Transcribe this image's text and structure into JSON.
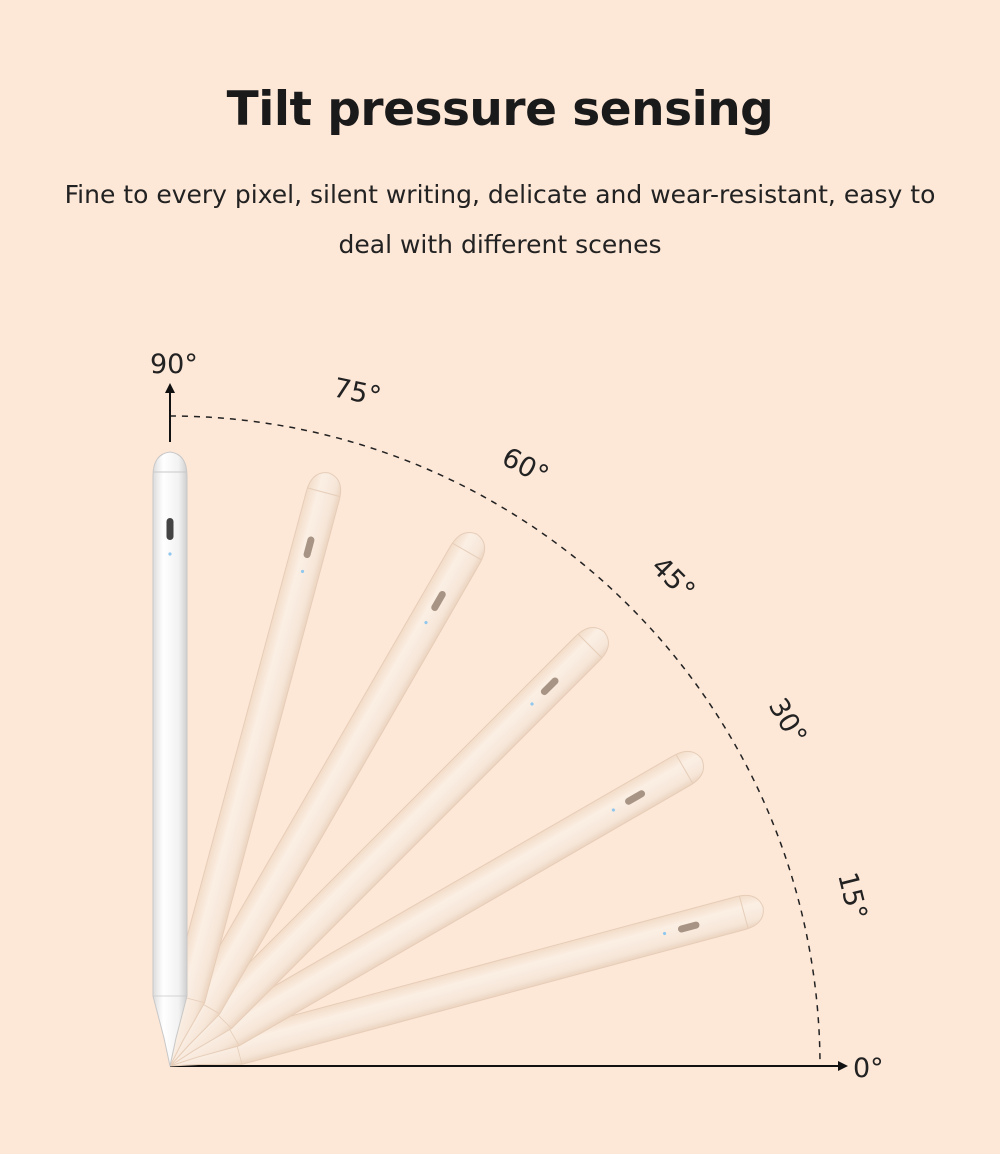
{
  "title": "Tilt pressure sensing",
  "subtitle": "Fine to every pixel, silent writing, delicate and wear-resistant, easy to deal with different scenes",
  "angle_labels": [
    "90°",
    "75°",
    "60°",
    "45°",
    "30°",
    "15°",
    "0°"
  ],
  "pen_angles": [
    90,
    75,
    60,
    45,
    30,
    15
  ],
  "colors": {
    "background": "#fde7d7",
    "pen_vertical": "#f4f4f4",
    "pen_tilted": "#f8e8da",
    "text": "#1a1a1a"
  }
}
